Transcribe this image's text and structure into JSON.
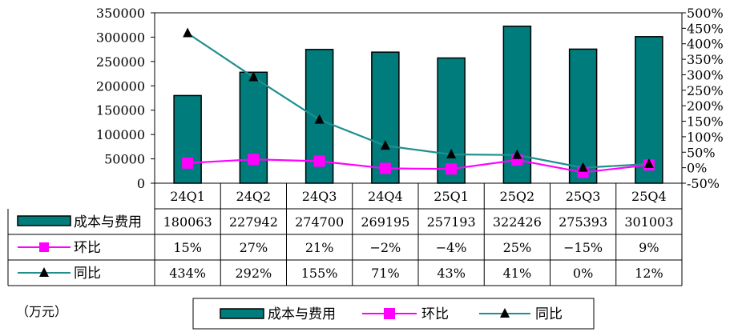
{
  "chart_data": {
    "type": "bar+line",
    "categories": [
      "24Q1",
      "24Q2",
      "24Q3",
      "24Q4",
      "25Q1",
      "25Q2",
      "25Q3",
      "25Q4"
    ],
    "series": [
      {
        "name": "成本与费用",
        "type": "bar",
        "axis": "left",
        "color": "#007c7c",
        "values": [
          180063,
          227942,
          274700,
          269195,
          257193,
          322426,
          275393,
          301003
        ]
      },
      {
        "name": "环比",
        "type": "line",
        "axis": "right",
        "color": "#ff00ff",
        "marker": "square",
        "values": [
          15,
          27,
          21,
          -2,
          -4,
          25,
          -15,
          9
        ],
        "labels": [
          "15%",
          "27%",
          "21%",
          "-2%",
          "-4%",
          "25%",
          "-15%",
          "9%"
        ]
      },
      {
        "name": "同比",
        "type": "line",
        "axis": "right",
        "color": "#1f8f8f",
        "marker": "triangle",
        "values": [
          434,
          292,
          155,
          71,
          43,
          41,
          0,
          12
        ],
        "labels": [
          "434%",
          "292%",
          "155%",
          "71%",
          "43%",
          "41%",
          "0%",
          "12%"
        ]
      }
    ],
    "left_axis": {
      "min": 0,
      "max": 350000,
      "step": 50000,
      "ticks": [
        "0",
        "50000",
        "100000",
        "150000",
        "200000",
        "250000",
        "300000",
        "350000"
      ]
    },
    "right_axis": {
      "min": -50,
      "max": 500,
      "step": 50,
      "ticks": [
        "-50%",
        "0%",
        "50%",
        "100%",
        "150%",
        "200%",
        "250%",
        "300%",
        "350%",
        "400%",
        "450%",
        "500%"
      ]
    },
    "table_rows": [
      {
        "label": "成本与费用",
        "cells": [
          "180063",
          "227942",
          "274700",
          "269195",
          "257193",
          "322426",
          "275393",
          "301003"
        ]
      },
      {
        "label": "环比",
        "cells": [
          "15%",
          "27%",
          "21%",
          "−2%",
          "−4%",
          "25%",
          "−15%",
          "9%"
        ]
      },
      {
        "label": "同比",
        "cells": [
          "434%",
          "292%",
          "155%",
          "71%",
          "43%",
          "41%",
          "0%",
          "12%"
        ]
      }
    ],
    "unit_label": "（万元）",
    "legend": [
      "成本与费用",
      "环比",
      "同比"
    ]
  }
}
